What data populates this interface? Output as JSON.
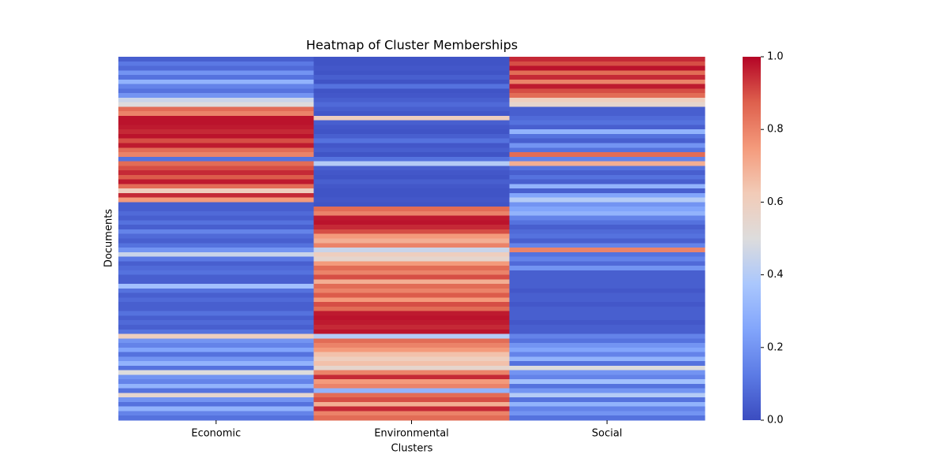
{
  "chart_data": {
    "type": "heatmap",
    "title": "Heatmap of Cluster Memberships",
    "xlabel": "Clusters",
    "ylabel": "Documents",
    "categories": [
      "Economic",
      "Environmental",
      "Social"
    ],
    "colormap": "coolwarm",
    "zlim": [
      0,
      1
    ],
    "zticks": [
      {
        "value": 0,
        "label": "0.0"
      },
      {
        "value": 0.2,
        "label": "0.2"
      },
      {
        "value": 0.4,
        "label": "0.4"
      },
      {
        "value": 0.6,
        "label": "0.6"
      },
      {
        "value": 0.8,
        "label": "0.8"
      },
      {
        "value": 1,
        "label": "1.0"
      }
    ],
    "values": [
      [
        0.05,
        0.12,
        0.08,
        0.2,
        0.1,
        0.3,
        0.15,
        0.1,
        0.2,
        0.45,
        0.5,
        0.85,
        0.8,
        0.98,
        0.98,
        0.97,
        0.95,
        0.98,
        0.9,
        0.97,
        0.85,
        0.8,
        0.1,
        0.85,
        0.9,
        0.95,
        0.88,
        0.97,
        0.85,
        0.6,
        0.95,
        0.75,
        0.05,
        0.05,
        0.08,
        0.05,
        0.1,
        0.05,
        0.15,
        0.08,
        0.05,
        0.1,
        0.2,
        0.45,
        0.12,
        0.05,
        0.08,
        0.1,
        0.05,
        0.05,
        0.35,
        0.1,
        0.05,
        0.08,
        0.05,
        0.05,
        0.1,
        0.05,
        0.08,
        0.05,
        0.1,
        0.6,
        0.2,
        0.15,
        0.25,
        0.1,
        0.2,
        0.3,
        0.1,
        0.5,
        0.2,
        0.15,
        0.3,
        0.1,
        0.55,
        0.2,
        0.1,
        0.3,
        0.15,
        0.1
      ],
      [
        0.02,
        0.02,
        0.03,
        0.02,
        0.05,
        0.02,
        0.1,
        0.02,
        0.03,
        0.05,
        0.08,
        0.05,
        0.03,
        0.6,
        0.05,
        0.03,
        0.02,
        0.05,
        0.1,
        0.03,
        0.05,
        0.02,
        0.1,
        0.4,
        0.05,
        0.03,
        0.02,
        0.05,
        0.03,
        0.02,
        0.02,
        0.03,
        0.02,
        0.85,
        0.8,
        0.97,
        0.98,
        0.95,
        0.9,
        0.75,
        0.7,
        0.8,
        0.45,
        0.6,
        0.55,
        0.75,
        0.85,
        0.8,
        0.9,
        0.7,
        0.85,
        0.8,
        0.88,
        0.75,
        0.9,
        0.85,
        0.97,
        0.98,
        0.97,
        0.95,
        0.98,
        0.4,
        0.85,
        0.8,
        0.75,
        0.65,
        0.6,
        0.65,
        0.55,
        0.8,
        0.95,
        0.75,
        0.8,
        0.3,
        0.85,
        0.9,
        0.7,
        0.95,
        0.8,
        0.85
      ],
      [
        0.95,
        0.9,
        0.98,
        0.85,
        0.95,
        0.8,
        0.97,
        0.9,
        0.85,
        0.6,
        0.55,
        0.05,
        0.05,
        0.08,
        0.1,
        0.05,
        0.3,
        0.1,
        0.05,
        0.2,
        0.1,
        0.85,
        0.15,
        0.7,
        0.1,
        0.05,
        0.1,
        0.05,
        0.3,
        0.05,
        0.25,
        0.4,
        0.2,
        0.25,
        0.3,
        0.15,
        0.1,
        0.05,
        0.08,
        0.1,
        0.05,
        0.15,
        0.8,
        0.1,
        0.15,
        0.08,
        0.2,
        0.05,
        0.05,
        0.05,
        0.05,
        0.03,
        0.05,
        0.05,
        0.03,
        0.05,
        0.05,
        0.05,
        0.03,
        0.05,
        0.05,
        0.15,
        0.1,
        0.2,
        0.25,
        0.15,
        0.3,
        0.1,
        0.5,
        0.2,
        0.15,
        0.35,
        0.1,
        0.2,
        0.4,
        0.1,
        0.3,
        0.15,
        0.2,
        0.1
      ]
    ]
  }
}
